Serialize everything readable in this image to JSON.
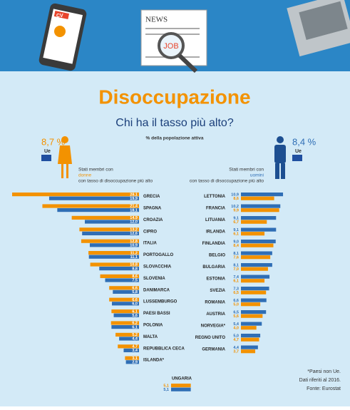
{
  "header": {
    "cv": "CV",
    "news": "NEWS",
    "job": "JOB"
  },
  "title": "Disoccupazione",
  "subtitle": "Chi ha il tasso più alto?",
  "unit_note": "% della popolazione attiva",
  "notes": [
    "*Paesi non Ue.",
    "Dati riferiti al 2016.",
    "Fonte: Eurostat"
  ],
  "chart_data": [
    {
      "type": "bar",
      "orientation": "horizontal",
      "header_lines": [
        "Stati membri con",
        "con tasso di disoccupazione più alto"
      ],
      "eu_value": 8.7,
      "eu_label": "8,7 %",
      "eu_text": "Ue",
      "xlim": [
        0,
        30
      ],
      "categories": [
        "GRECIA",
        "SPAGNA",
        "CROAZIA",
        "CIPRO",
        "ITALIA",
        "PORTOGALLO",
        "SLOVACCHIA",
        "SLOVENIA",
        "DANIMARCA",
        "LUSSEMBURGO",
        "PAESI BASSI",
        "POLONIA",
        "MALTA",
        "REPUBBLICA CECA",
        "ISLANDA*"
      ],
      "series": [
        {
          "name": "donne",
          "color": "#f39200",
          "values": [
            28.1,
            21.4,
            14.9,
            13.2,
            12.8,
            11.2,
            10.8,
            8.6,
            6.6,
            6.6,
            6.1,
            6.2,
            5.2,
            4.7,
            3.1
          ],
          "value_labels": [
            "28,1",
            "21,4",
            "14,9",
            "13,2",
            "12,8",
            "11,2",
            "10,8",
            "8,6",
            "6,6",
            "6,6",
            "6,1",
            "6,2",
            "5,2",
            "4,7",
            "3,1"
          ]
        },
        {
          "name": "uomini",
          "color": "#2f6eb5",
          "values": [
            19.9,
            18.1,
            12.0,
            12.6,
            10.9,
            11.1,
            8.8,
            7.5,
            5.8,
            6.0,
            5.6,
            6.1,
            4.4,
            3.4,
            2.9
          ],
          "value_labels": [
            "19,9",
            "18,1",
            "12,0",
            "12,6",
            "10,9",
            "11,1",
            "8,8",
            "7,5",
            "5,8",
            "6,0",
            "5,6",
            "6,1",
            "4,4",
            "3,4",
            "2,9"
          ]
        }
      ]
    },
    {
      "type": "bar",
      "orientation": "horizontal",
      "header_lines": [
        "Stati membri con",
        "con tasso di disoccupazione più alto"
      ],
      "eu_value": 8.4,
      "eu_label": "8,4 %",
      "eu_text": "Ue",
      "xlim": [
        0,
        12
      ],
      "categories": [
        "LETTONIA",
        "FRANCIA",
        "LITUANIA",
        "IRLANDA",
        "FINLANDIA",
        "BELGIO",
        "BULGARIA",
        "ESTONIA",
        "SVEZIA",
        "ROMANIA",
        "AUSTRIA",
        "NORVEGIA*",
        "REGNO UNITO",
        "GERMANIA"
      ],
      "series": [
        {
          "name": "uomini",
          "color": "#2f6eb5",
          "values": [
            10.9,
            10.2,
            9.1,
            9.1,
            9.0,
            8.1,
            8.1,
            7.4,
            7.3,
            6.6,
            6.5,
            5.4,
            5.0,
            4.4
          ],
          "value_labels": [
            "10,9",
            "10,2",
            "9,1",
            "9,1",
            "9,0",
            "8,1",
            "8,1",
            "7,4",
            "7,3",
            "6,6",
            "6,5",
            "5,4",
            "5,0",
            "4,4"
          ]
        },
        {
          "name": "donne",
          "color": "#f39200",
          "values": [
            8.6,
            9.9,
            6.7,
            6.1,
            8.4,
            7.6,
            7.0,
            6.1,
            6.5,
            5.0,
            5.6,
            4.0,
            4.7,
            3.7
          ],
          "value_labels": [
            "8,6",
            "9,9",
            "6,7",
            "6,1",
            "8,4",
            "7,6",
            "7,0",
            "6,1",
            "6,5",
            "5,0",
            "5,6",
            "4,0",
            "4,7",
            "3,7"
          ]
        }
      ]
    },
    {
      "type": "bar",
      "orientation": "horizontal",
      "xlim": [
        0,
        12
      ],
      "categories": [
        "UNGARIA"
      ],
      "series": [
        {
          "name": "donne",
          "color": "#f39200",
          "values": [
            5.1
          ],
          "value_labels": [
            "5,1"
          ]
        },
        {
          "name": "uomini",
          "color": "#2f6eb5",
          "values": [
            5.1
          ],
          "value_labels": [
            "5,1"
          ]
        }
      ]
    }
  ]
}
